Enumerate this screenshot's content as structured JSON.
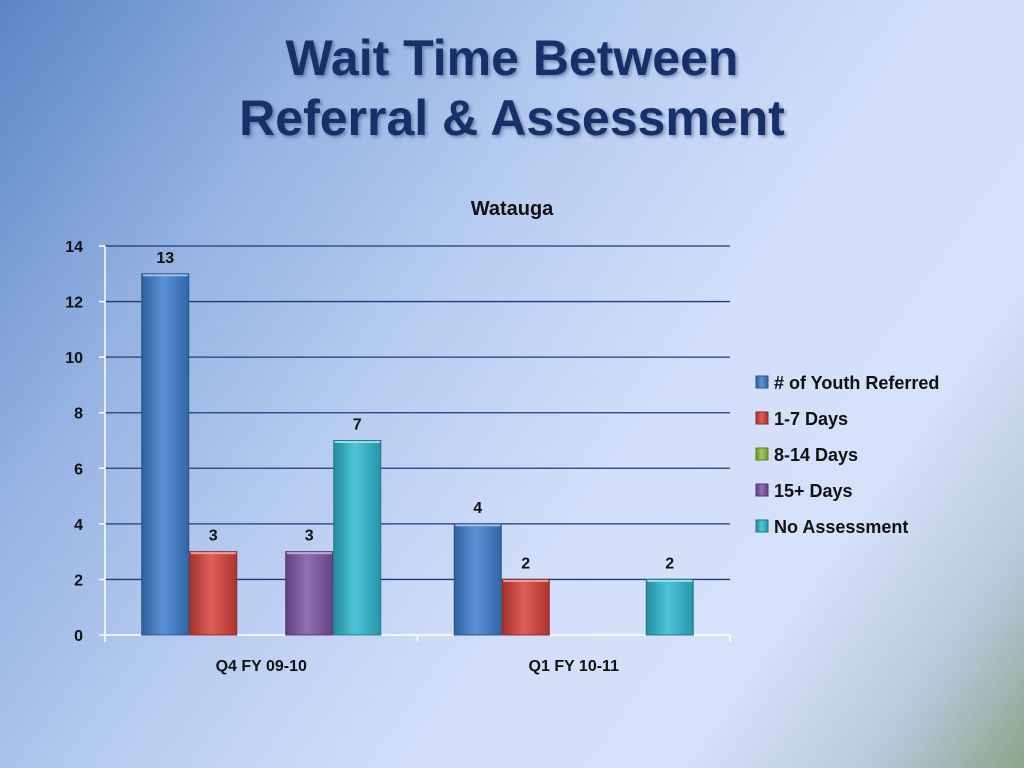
{
  "slide": {
    "title_line1": "Wait Time Between",
    "title_line2": "Referral & Assessment"
  },
  "chart_data": {
    "type": "bar",
    "title": "Watauga",
    "categories": [
      "Q4 FY 09-10",
      "Q1 FY 10-11"
    ],
    "series": [
      {
        "name": "# of Youth Referred",
        "color": "#3d7fd0",
        "values": [
          13,
          4
        ]
      },
      {
        "name": "1-7 Days",
        "color": "#d9413a",
        "values": [
          3,
          2
        ]
      },
      {
        "name": "8-14 Days",
        "color": "#93c03a",
        "values": [
          null,
          null
        ]
      },
      {
        "name": "15+ Days",
        "color": "#7d55a6",
        "values": [
          3,
          null
        ]
      },
      {
        "name": "No Assessment",
        "color": "#2fbad2",
        "values": [
          7,
          2
        ]
      }
    ],
    "ylim": [
      0,
      14
    ],
    "yticks": [
      0,
      2,
      4,
      6,
      8,
      10,
      12,
      14
    ],
    "grid": true,
    "legend": "right"
  }
}
